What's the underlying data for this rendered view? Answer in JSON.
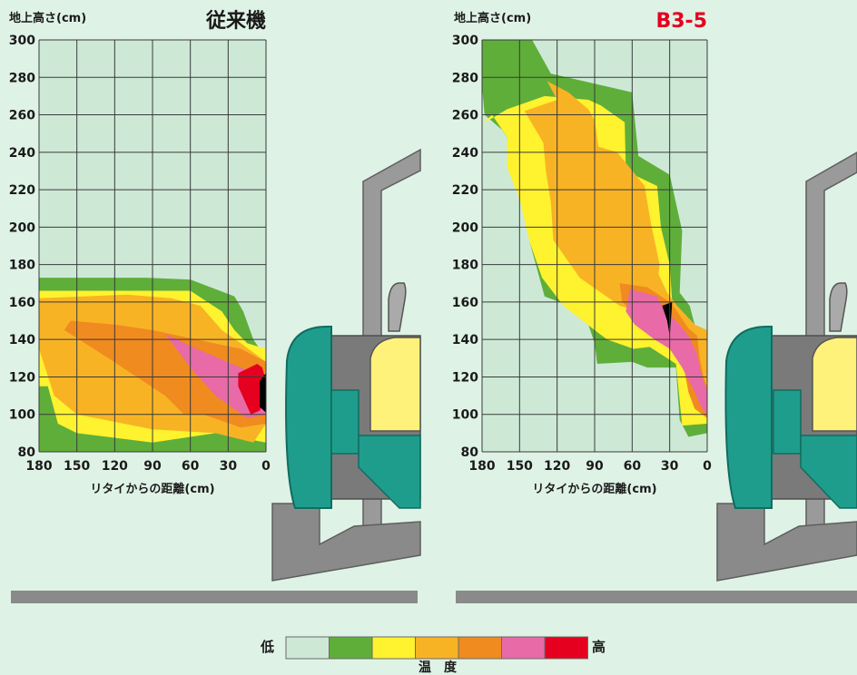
{
  "chart_data": [
    {
      "type": "heatmap",
      "title": "従来機",
      "ylabel": "地上高さ(cm)",
      "xlabel": "リタイからの距離(cm)",
      "x_ticks": [
        "180",
        "150",
        "120",
        "90",
        "60",
        "30",
        "0"
      ],
      "y_ticks": [
        "300",
        "280",
        "260",
        "240",
        "220",
        "200",
        "180",
        "160",
        "140",
        "120",
        "100",
        "80"
      ],
      "xlim": [
        180,
        0
      ],
      "ylim": [
        80,
        300
      ],
      "grid": true,
      "levels": [
        {
          "level": 1,
          "points": [
            [
              180,
              173
            ],
            [
              95,
              173
            ],
            [
              60,
              172
            ],
            [
              25,
              163
            ],
            [
              18,
              155
            ],
            [
              10,
              140
            ],
            [
              0,
              130
            ],
            [
              0,
              80
            ],
            [
              90,
              80
            ],
            [
              150,
              80
            ],
            [
              180,
              80
            ]
          ]
        },
        {
          "level": 2,
          "points": [
            [
              180,
              166
            ],
            [
              95,
              166
            ],
            [
              60,
              166
            ],
            [
              35,
              155
            ],
            [
              25,
              145
            ],
            [
              15,
              138
            ],
            [
              0,
              135
            ],
            [
              0,
              85
            ],
            [
              40,
              90
            ],
            [
              90,
              85
            ],
            [
              150,
              90
            ],
            [
              165,
              95
            ],
            [
              173,
              115
            ],
            [
              180,
              115
            ]
          ]
        },
        {
          "level": 3,
          "points": [
            [
              180,
              162
            ],
            [
              110,
              164
            ],
            [
              75,
              162
            ],
            [
              52,
              158
            ],
            [
              35,
              145
            ],
            [
              20,
              138
            ],
            [
              0,
              128
            ],
            [
              0,
              95
            ],
            [
              10,
              85
            ],
            [
              40,
              90
            ],
            [
              90,
              92
            ],
            [
              150,
              100
            ],
            [
              168,
              110
            ],
            [
              180,
              135
            ]
          ]
        },
        {
          "level": 4,
          "points": [
            [
              155,
              150
            ],
            [
              120,
              148
            ],
            [
              90,
              145
            ],
            [
              55,
              140
            ],
            [
              20,
              135
            ],
            [
              0,
              128
            ],
            [
              0,
              95
            ],
            [
              20,
              93
            ],
            [
              50,
              100
            ],
            [
              65,
              100
            ],
            [
              80,
              110
            ],
            [
              125,
              130
            ],
            [
              160,
              145
            ]
          ]
        },
        {
          "level": 5,
          "points": [
            [
              80,
              143
            ],
            [
              55,
              135
            ],
            [
              20,
              125
            ],
            [
              0,
              120
            ],
            [
              0,
              100
            ],
            [
              15,
              98
            ],
            [
              40,
              110
            ],
            [
              60,
              125
            ]
          ]
        },
        {
          "level": 6,
          "points": [
            [
              22,
              122
            ],
            [
              7,
              127
            ],
            [
              3,
              125
            ],
            [
              0,
              118
            ],
            [
              0,
              110
            ],
            [
              5,
              102
            ],
            [
              12,
              100
            ],
            [
              22,
              115
            ]
          ]
        },
        {
          "level": 7,
          "points": [
            [
              5,
              118
            ],
            [
              0,
              122
            ],
            [
              0,
              101
            ],
            [
              5,
              104
            ]
          ]
        }
      ]
    },
    {
      "type": "heatmap",
      "title": "B3-5",
      "ylabel": "地上高さ(cm)",
      "xlabel": "リタイからの距離(cm)",
      "x_ticks": [
        "180",
        "150",
        "120",
        "90",
        "60",
        "30",
        "0"
      ],
      "y_ticks": [
        "300",
        "280",
        "260",
        "240",
        "220",
        "200",
        "180",
        "160",
        "140",
        "120",
        "100",
        "80"
      ],
      "xlim": [
        180,
        0
      ],
      "ylim": [
        80,
        300
      ],
      "grid": true,
      "levels": [
        {
          "level": 1,
          "points": [
            [
              180,
              300
            ],
            [
              140,
              300
            ],
            [
              125,
              282
            ],
            [
              60,
              272
            ],
            [
              55,
              238
            ],
            [
              30,
              228
            ],
            [
              20,
              198
            ],
            [
              22,
              165
            ],
            [
              14,
              158
            ],
            [
              10,
              148
            ],
            [
              3,
              140
            ],
            [
              0,
              138
            ],
            [
              0,
              90
            ],
            [
              15,
              88
            ],
            [
              22,
              97
            ],
            [
              25,
              125
            ],
            [
              48,
              125
            ],
            [
              60,
              128
            ],
            [
              88,
              127
            ],
            [
              90,
              138
            ],
            [
              95,
              148
            ],
            [
              110,
              158
            ],
            [
              130,
              163
            ],
            [
              142,
              192
            ],
            [
              142,
              215
            ],
            [
              155,
              243
            ],
            [
              164,
              252
            ],
            [
              178,
              260
            ],
            [
              180,
              275
            ]
          ]
        },
        {
          "level": 2,
          "points": [
            [
              180,
              255
            ],
            [
              160,
              263
            ],
            [
              130,
              270
            ],
            [
              95,
              268
            ],
            [
              85,
              265
            ],
            [
              66,
              256
            ],
            [
              65,
              230
            ],
            [
              40,
              222
            ],
            [
              37,
              200
            ],
            [
              30,
              180
            ],
            [
              28,
              160
            ],
            [
              20,
              152
            ],
            [
              8,
              145
            ],
            [
              0,
              140
            ],
            [
              0,
              95
            ],
            [
              20,
              94
            ],
            [
              25,
              127
            ],
            [
              46,
              136
            ],
            [
              59,
              135
            ],
            [
              80,
              140
            ],
            [
              90,
              145
            ],
            [
              115,
              158
            ],
            [
              132,
              173
            ],
            [
              142,
              192
            ],
            [
              150,
              215
            ],
            [
              160,
              232
            ],
            [
              160,
              248
            ],
            [
              172,
              260
            ]
          ]
        },
        {
          "level": 3,
          "points": [
            [
              128,
              278
            ],
            [
              111,
              272
            ],
            [
              95,
              263
            ],
            [
              90,
              257
            ],
            [
              87,
              243
            ],
            [
              72,
              240
            ],
            [
              50,
              222
            ],
            [
              45,
              202
            ],
            [
              38,
              180
            ],
            [
              39,
              175
            ],
            [
              32,
              165
            ],
            [
              24,
              158
            ],
            [
              10,
              148
            ],
            [
              0,
              145
            ],
            [
              0,
              117
            ],
            [
              5,
              115
            ],
            [
              20,
              135
            ],
            [
              34,
              147
            ],
            [
              50,
              153
            ],
            [
              55,
              155
            ],
            [
              70,
              158
            ],
            [
              102,
              173
            ],
            [
              123,
              193
            ],
            [
              125,
              213
            ],
            [
              129,
              230
            ],
            [
              131,
              245
            ],
            [
              146,
              262
            ],
            [
              120,
              268
            ]
          ]
        },
        {
          "level": 4,
          "points": [
            [
              70,
              170
            ],
            [
              48,
              168
            ],
            [
              30,
              160
            ],
            [
              24,
              155
            ],
            [
              15,
              146
            ],
            [
              8,
              142
            ],
            [
              6,
              130
            ],
            [
              3,
              120
            ],
            [
              0,
              115
            ],
            [
              0,
              98
            ],
            [
              10,
              103
            ],
            [
              15,
              112
            ],
            [
              20,
              130
            ],
            [
              30,
              138
            ],
            [
              45,
              145
            ],
            [
              55,
              152
            ],
            [
              68,
              160
            ]
          ]
        },
        {
          "level": 5,
          "points": [
            [
              62,
              167
            ],
            [
              40,
              163
            ],
            [
              34,
              155
            ],
            [
              25,
              150
            ],
            [
              15,
              142
            ],
            [
              8,
              132
            ],
            [
              6,
              125
            ],
            [
              3,
              118
            ],
            [
              0,
              113
            ],
            [
              0,
              100
            ],
            [
              5,
              104
            ],
            [
              10,
              112
            ],
            [
              20,
              125
            ],
            [
              30,
              135
            ],
            [
              42,
              140
            ],
            [
              58,
              148
            ],
            [
              65,
              155
            ]
          ]
        },
        {
          "level": 7,
          "points": [
            [
              36,
              158
            ],
            [
              28,
              160
            ],
            [
              29,
              150
            ],
            [
              30,
              142
            ],
            [
              32,
              150
            ]
          ]
        }
      ]
    }
  ],
  "legend": {
    "low": "低",
    "high": "高",
    "caption": "温　度",
    "colors": [
      "#cde9d6",
      "#5fae3a",
      "#fff22e",
      "#f8b325",
      "#f08b20",
      "#e86aa6",
      "#e4001e"
    ]
  },
  "colors": {
    "background": "#dff2e6",
    "grid": "#3a3a3a",
    "title_b35": "#e4001e",
    "tractor_teal": "#1f9d8c",
    "tractor_gray": "#8a8a8a",
    "tractor_yellow": "#fff27a"
  }
}
